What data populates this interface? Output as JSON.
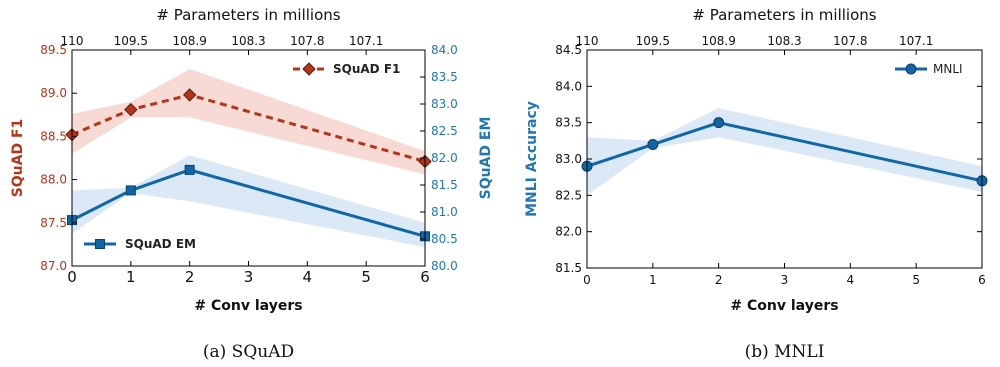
{
  "chart_data": [
    {
      "type": "line",
      "caption": "(a) SQuAD",
      "xlabel": "# Conv layers",
      "top_xlabel": "# Parameters in millions",
      "xlim": [
        0,
        6
      ],
      "x_ticks": [
        0,
        1,
        2,
        3,
        4,
        5,
        6
      ],
      "top_ticks": [
        {
          "x": 0,
          "label": "110"
        },
        {
          "x": 1,
          "label": "109.5"
        },
        {
          "x": 2,
          "label": "108.9"
        },
        {
          "x": 3,
          "label": "108.3"
        },
        {
          "x": 4,
          "label": "107.8"
        },
        {
          "x": 5,
          "label": "107.1"
        }
      ],
      "ylabel_left": "SQuAD F1",
      "ylim_left": [
        87.0,
        89.5
      ],
      "y_ticks_left": [
        "87.0",
        "87.5",
        "88.0",
        "88.5",
        "89.0",
        "89.5"
      ],
      "ylabel_right": "SQuAD EM",
      "ylim_right": [
        80.0,
        84.0
      ],
      "y_ticks_right": [
        "80.0",
        "80.5",
        "81.0",
        "81.5",
        "82.0",
        "82.5",
        "83.0",
        "83.5",
        "84.0"
      ],
      "series": [
        {
          "name": "SQuAD F1",
          "axis": "left",
          "color": "#b5341a",
          "band_color": "#f4cdc6",
          "style": "dashed",
          "marker": "diamond",
          "x": [
            0,
            1,
            2,
            6
          ],
          "y": [
            88.52,
            88.81,
            88.98,
            88.21
          ],
          "lower": [
            88.3,
            88.72,
            88.72,
            88.06
          ],
          "upper": [
            88.76,
            88.9,
            89.28,
            88.33
          ]
        },
        {
          "name": "SQuAD EM",
          "axis": "right",
          "color": "#1066a6",
          "band_color": "#cfe2f3",
          "style": "solid",
          "marker": "square",
          "x": [
            0,
            1,
            2,
            6
          ],
          "y": [
            80.85,
            81.4,
            81.78,
            80.55
          ],
          "lower": [
            80.6,
            81.35,
            81.2,
            80.35
          ],
          "upper": [
            81.4,
            81.45,
            82.05,
            80.8
          ]
        }
      ],
      "legend": [
        {
          "label": "SQuAD F1",
          "placement": "top-right"
        },
        {
          "label": "SQuAD EM",
          "placement": "bottom-left"
        }
      ]
    },
    {
      "type": "line",
      "caption": "(b) MNLI",
      "xlabel": "# Conv layers",
      "top_xlabel": "# Parameters in millions",
      "xlim": [
        0,
        6
      ],
      "x_ticks": [
        0,
        1,
        2,
        3,
        4,
        5,
        6
      ],
      "top_ticks": [
        {
          "x": 0,
          "label": "110"
        },
        {
          "x": 1,
          "label": "109.5"
        },
        {
          "x": 2,
          "label": "108.9"
        },
        {
          "x": 3,
          "label": "108.3"
        },
        {
          "x": 4,
          "label": "107.8"
        },
        {
          "x": 5,
          "label": "107.1"
        }
      ],
      "ylabel": "MNLI Accuracy",
      "ylim": [
        81.5,
        84.5
      ],
      "y_ticks": [
        "81.5",
        "82.0",
        "82.5",
        "83.0",
        "83.5",
        "84.0",
        "84.5"
      ],
      "series": [
        {
          "name": "MNLI",
          "color": "#1066a6",
          "band_color": "#cfe2f3",
          "style": "solid",
          "marker": "circle",
          "x": [
            0,
            1,
            2,
            6
          ],
          "y": [
            82.9,
            83.2,
            83.5,
            82.7
          ],
          "lower": [
            82.5,
            83.15,
            83.3,
            82.55
          ],
          "upper": [
            83.3,
            83.25,
            83.7,
            82.9
          ]
        }
      ],
      "legend": [
        {
          "label": "MNLI",
          "placement": "top-right"
        }
      ]
    }
  ]
}
